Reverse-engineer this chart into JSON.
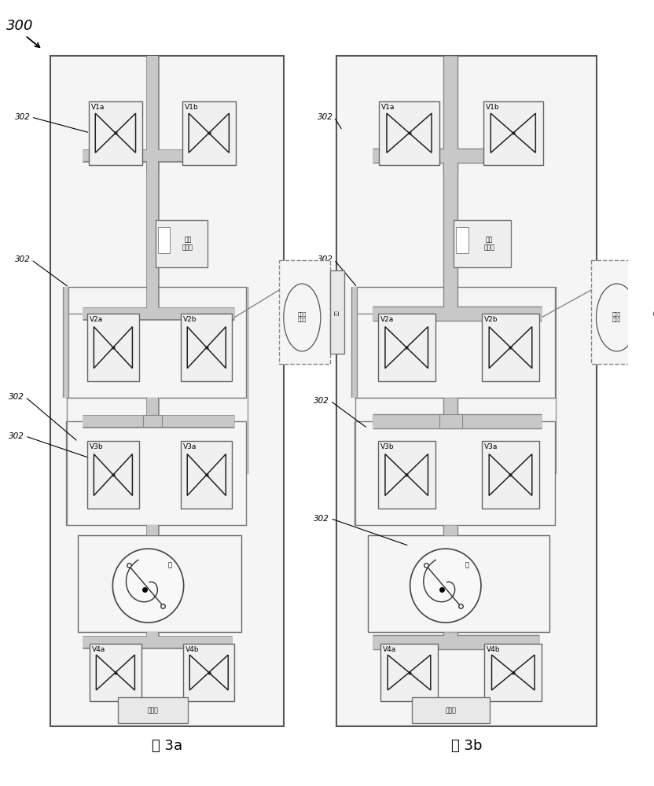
{
  "bg_color": "#ffffff",
  "fig_width": 8.32,
  "fig_height": 10.0,
  "pipe_fill": "#c8c8c8",
  "pipe_edge": "#888888",
  "box_bg": "#e8e8e8",
  "box_edge": "#888888",
  "panel_bg": "#f0f0f0",
  "panel_edge": "#555555",
  "breath_sensor_label": "呼吸\n传感器",
  "analyte_sensor_label": "分析物\n传感器",
  "pump_label": "泵",
  "filter_label": "过滤器",
  "regulator_label": "回调",
  "caption_a": "图 3a",
  "caption_b": "图 3b",
  "label_300": "300",
  "label_302": "302"
}
